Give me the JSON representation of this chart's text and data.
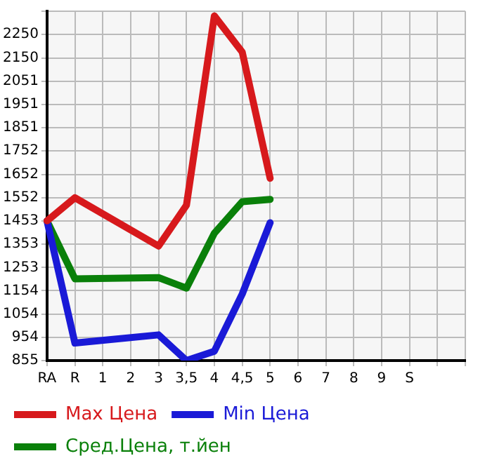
{
  "chart_data": {
    "type": "line",
    "categories": [
      "RA",
      "R",
      "1",
      "2",
      "3",
      "3,5",
      "4",
      "4,5",
      "5",
      "6",
      "7",
      "8",
      "9",
      "S",
      null,
      null
    ],
    "series": [
      {
        "name": "Max Цена",
        "color": "#d7191c",
        "values": [
          1453,
          1552,
          null,
          null,
          1345,
          1520,
          2330,
          2175,
          1635,
          null,
          null,
          null,
          null,
          null,
          null,
          null
        ]
      },
      {
        "name": "Min Цена",
        "color": "#1a1ad7",
        "values": [
          1453,
          930,
          null,
          null,
          965,
          855,
          895,
          1140,
          1445,
          null,
          null,
          null,
          null,
          null,
          null,
          null
        ]
      },
      {
        "name": "Сред.Цена, т.йен",
        "color": "#0a800a",
        "values": [
          1453,
          1205,
          null,
          null,
          1210,
          1165,
          1400,
          1535,
          1545,
          null,
          null,
          null,
          null,
          null,
          null,
          null
        ]
      }
    ],
    "ylim": [
      855,
      2350
    ],
    "yticks": [
      855,
      954,
      1054,
      1154,
      1253,
      1353,
      1453,
      1552,
      1652,
      1752,
      1851,
      1951,
      2051,
      2150,
      2250,
      {
        "value": 2350,
        "label": null
      }
    ],
    "grid": true,
    "legend": "bottom",
    "marker": "none",
    "line_style": "solid"
  }
}
